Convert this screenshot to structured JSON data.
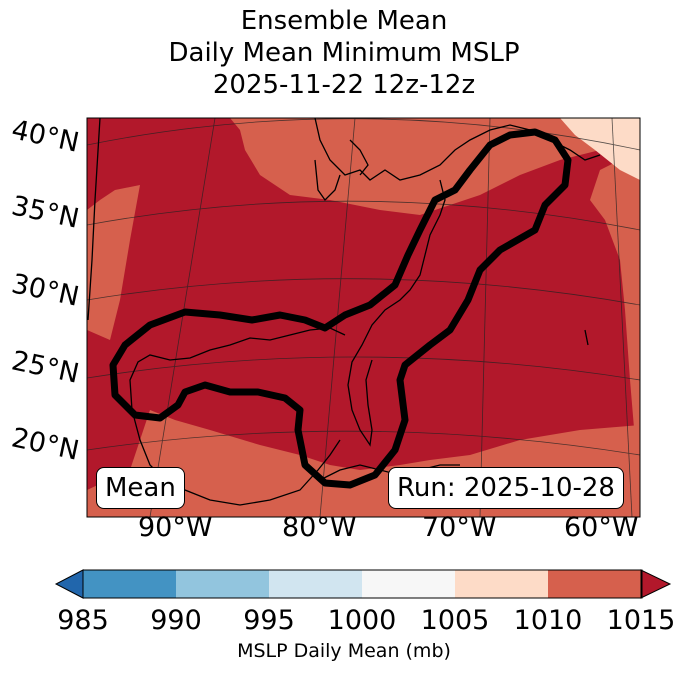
{
  "title": {
    "line1": "Ensemble Mean",
    "line2": "Daily Mean Minimum MSLP",
    "line3": "2025-11-22 12z-12z"
  },
  "map": {
    "lat_labels": [
      "40°N",
      "35°N",
      "30°N",
      "25°N",
      "20°N"
    ],
    "lon_labels": [
      "90°W",
      "80°W",
      "70°W",
      "60°W"
    ],
    "mean_box": "Mean",
    "run_box": "Run: 2025-10-28",
    "colors": {
      "dark_red": "#b2182b",
      "mid_red": "#d6604d",
      "light_peach": "#fddbc7"
    }
  },
  "colorbar": {
    "ticks": [
      "985",
      "990",
      "995",
      "1000",
      "1005",
      "1010",
      "1015"
    ],
    "label": "MSLP Daily Mean (mb)",
    "colors": [
      "#2166ac",
      "#4393c3",
      "#92c5de",
      "#d1e5f0",
      "#f7f7f7",
      "#fddbc7",
      "#d6604d",
      "#b2182b"
    ]
  }
}
